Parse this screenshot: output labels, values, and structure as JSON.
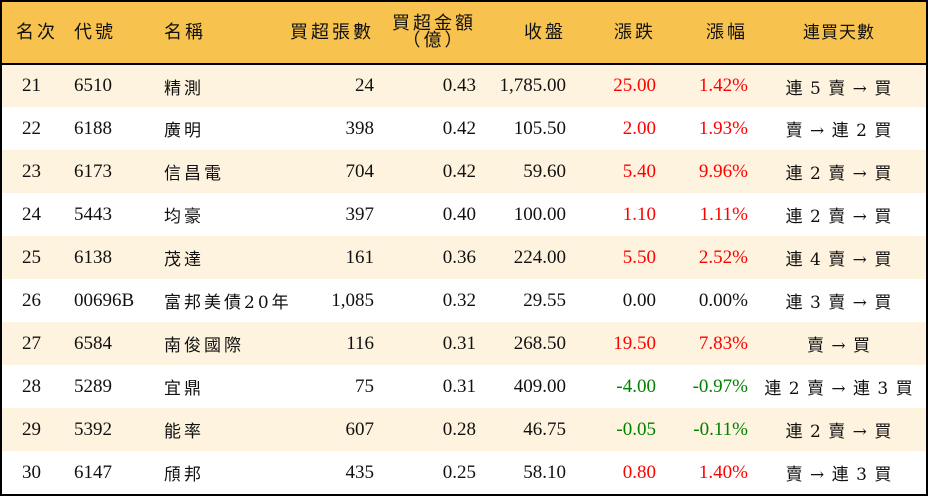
{
  "table": {
    "headers": {
      "rank": "名次",
      "code": "代號",
      "name": "名稱",
      "net_buy_lots": "買超張數",
      "net_buy_amount_line1": "買超金額",
      "net_buy_amount_line2": "（億）",
      "close": "收盤",
      "change": "漲跌",
      "change_pct": "漲幅",
      "streak": "連買天數"
    },
    "colors": {
      "header_bg": "#F8C24E",
      "row_alt_bg": "#FEF3DE",
      "row_plain_bg": "#FFFFFF",
      "up": "#FF0000",
      "down": "#008000",
      "border": "#000000"
    },
    "rows": [
      {
        "rank": "21",
        "code": "6510",
        "name": "精測",
        "net_buy_lots": "24",
        "net_buy_amount": "0.43",
        "close": "1,785.00",
        "change": "25.00",
        "change_pct": "1.42%",
        "direction": "up",
        "streak": "連 5 賣 → 買"
      },
      {
        "rank": "22",
        "code": "6188",
        "name": "廣明",
        "net_buy_lots": "398",
        "net_buy_amount": "0.42",
        "close": "105.50",
        "change": "2.00",
        "change_pct": "1.93%",
        "direction": "up",
        "streak": "賣 → 連 2 買"
      },
      {
        "rank": "23",
        "code": "6173",
        "name": "信昌電",
        "net_buy_lots": "704",
        "net_buy_amount": "0.42",
        "close": "59.60",
        "change": "5.40",
        "change_pct": "9.96%",
        "direction": "up",
        "streak": "連 2 賣 → 買"
      },
      {
        "rank": "24",
        "code": "5443",
        "name": "均豪",
        "net_buy_lots": "397",
        "net_buy_amount": "0.40",
        "close": "100.00",
        "change": "1.10",
        "change_pct": "1.11%",
        "direction": "up",
        "streak": "連 2 賣 → 買"
      },
      {
        "rank": "25",
        "code": "6138",
        "name": "茂達",
        "net_buy_lots": "161",
        "net_buy_amount": "0.36",
        "close": "224.00",
        "change": "5.50",
        "change_pct": "2.52%",
        "direction": "up",
        "streak": "連 4 賣 → 買"
      },
      {
        "rank": "26",
        "code": "00696B",
        "name": "富邦美債20年",
        "net_buy_lots": "1,085",
        "net_buy_amount": "0.32",
        "close": "29.55",
        "change": "0.00",
        "change_pct": "0.00%",
        "direction": "flat",
        "streak": "連 3 賣 → 買"
      },
      {
        "rank": "27",
        "code": "6584",
        "name": "南俊國際",
        "net_buy_lots": "116",
        "net_buy_amount": "0.31",
        "close": "268.50",
        "change": "19.50",
        "change_pct": "7.83%",
        "direction": "up",
        "streak": "賣 → 買"
      },
      {
        "rank": "28",
        "code": "5289",
        "name": "宜鼎",
        "net_buy_lots": "75",
        "net_buy_amount": "0.31",
        "close": "409.00",
        "change": "-4.00",
        "change_pct": "-0.97%",
        "direction": "down",
        "streak": "連 2 賣 → 連 3 買"
      },
      {
        "rank": "29",
        "code": "5392",
        "name": "能率",
        "net_buy_lots": "607",
        "net_buy_amount": "0.28",
        "close": "46.75",
        "change": "-0.05",
        "change_pct": "-0.11%",
        "direction": "down",
        "streak": "連 2 賣 → 買"
      },
      {
        "rank": "30",
        "code": "6147",
        "name": "頎邦",
        "net_buy_lots": "435",
        "net_buy_amount": "0.25",
        "close": "58.10",
        "change": "0.80",
        "change_pct": "1.40%",
        "direction": "up",
        "streak": "賣 → 連 3 買"
      }
    ]
  }
}
